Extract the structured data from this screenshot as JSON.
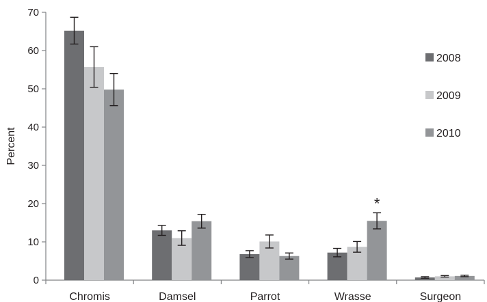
{
  "chart_data": {
    "type": "bar",
    "title": "",
    "xlabel": "",
    "ylabel": "Percent",
    "ylim": [
      0,
      70
    ],
    "yticks": [
      0,
      10,
      20,
      30,
      40,
      50,
      60,
      70
    ],
    "grid": false,
    "legend_position": "right",
    "categories": [
      "Chromis",
      "Damsel",
      "Parrot",
      "Wrasse",
      "Surgeon"
    ],
    "series": [
      {
        "name": "2008",
        "color": "#6d6e71",
        "values": [
          65.2,
          13.0,
          6.8,
          7.2,
          0.7
        ],
        "errors": [
          3.5,
          1.3,
          0.9,
          1.1,
          0.2
        ]
      },
      {
        "name": "2009",
        "color": "#c7c8ca",
        "values": [
          55.7,
          11.0,
          10.1,
          8.7,
          1.0
        ],
        "errors": [
          5.3,
          1.9,
          1.7,
          1.4,
          0.2
        ]
      },
      {
        "name": "2010",
        "color": "#939598",
        "values": [
          49.8,
          15.4,
          6.3,
          15.5,
          1.1
        ],
        "errors": [
          4.2,
          1.8,
          0.8,
          2.1,
          0.2
        ]
      }
    ],
    "annotations": [
      {
        "category": "Wrasse",
        "series": "2010",
        "text": "*"
      }
    ]
  }
}
